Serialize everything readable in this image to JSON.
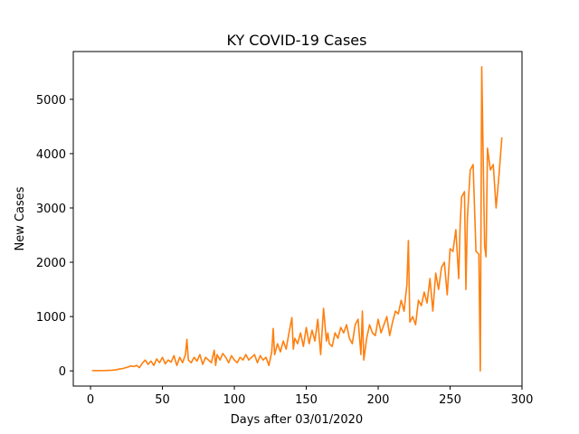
{
  "chart_data": {
    "type": "line",
    "title": "KY COVID-19 Cases",
    "xlabel": "Days after 03/01/2020",
    "ylabel": "New Cases",
    "xlim": [
      -12,
      300
    ],
    "ylim": [
      -280,
      5880
    ],
    "xticks": [
      0,
      50,
      100,
      150,
      200,
      250,
      300
    ],
    "yticks": [
      0,
      1000,
      2000,
      3000,
      4000,
      5000
    ],
    "grid": false,
    "line_color": "#ff7f0e",
    "series": [
      {
        "x": [
          1,
          5,
          10,
          15,
          18,
          20,
          22,
          24,
          26,
          28,
          30,
          32,
          34,
          36,
          38,
          40,
          42,
          44,
          46,
          48,
          50,
          52,
          54,
          56,
          58,
          60,
          62,
          64,
          66,
          67,
          68,
          70,
          72,
          74,
          76,
          78,
          80,
          82,
          84,
          86,
          87,
          88,
          90,
          92,
          94,
          96,
          98,
          100,
          102,
          104,
          106,
          108,
          110,
          112,
          114,
          116,
          118,
          120,
          122,
          124,
          126,
          127,
          128,
          130,
          132,
          134,
          136,
          138,
          140,
          141,
          142,
          144,
          146,
          148,
          150,
          152,
          154,
          156,
          158,
          160,
          162,
          164,
          165,
          166,
          168,
          170,
          172,
          174,
          176,
          178,
          180,
          182,
          184,
          186,
          188,
          189,
          190,
          192,
          194,
          196,
          198,
          200,
          202,
          204,
          206,
          208,
          210,
          212,
          214,
          216,
          218,
          220,
          221,
          222,
          224,
          226,
          228,
          230,
          232,
          234,
          236,
          238,
          240,
          242,
          244,
          246,
          248,
          250,
          252,
          254,
          256,
          257,
          258,
          260,
          261,
          262,
          264,
          266,
          268,
          270,
          271,
          272,
          274,
          275,
          276,
          278,
          280,
          282,
          284,
          286
        ],
        "values": [
          5,
          4,
          6,
          12,
          20,
          35,
          40,
          55,
          70,
          90,
          80,
          100,
          60,
          140,
          200,
          120,
          180,
          100,
          220,
          150,
          250,
          130,
          200,
          160,
          280,
          100,
          250,
          150,
          300,
          580,
          200,
          150,
          250,
          180,
          300,
          120,
          250,
          200,
          150,
          380,
          100,
          300,
          200,
          320,
          250,
          150,
          280,
          200,
          150,
          250,
          200,
          300,
          200,
          250,
          300,
          150,
          280,
          200,
          250,
          100,
          350,
          780,
          300,
          500,
          350,
          550,
          400,
          700,
          980,
          400,
          600,
          500,
          700,
          450,
          800,
          500,
          750,
          550,
          950,
          300,
          1150,
          550,
          700,
          500,
          450,
          700,
          600,
          800,
          700,
          850,
          600,
          500,
          850,
          950,
          300,
          1100,
          200,
          600,
          850,
          700,
          650,
          950,
          700,
          850,
          1000,
          650,
          900,
          1100,
          1050,
          1300,
          1100,
          1600,
          2400,
          900,
          1000,
          850,
          1300,
          1200,
          1450,
          1250,
          1700,
          1100,
          1800,
          1500,
          1900,
          2000,
          1400,
          2250,
          2200,
          2600,
          1700,
          2700,
          3200,
          3300,
          1500,
          2800,
          3700,
          3800,
          2200,
          2150,
          0,
          5600,
          2300,
          2100,
          4100,
          3700,
          3800,
          3000,
          3600,
          4300
        ]
      }
    ]
  }
}
